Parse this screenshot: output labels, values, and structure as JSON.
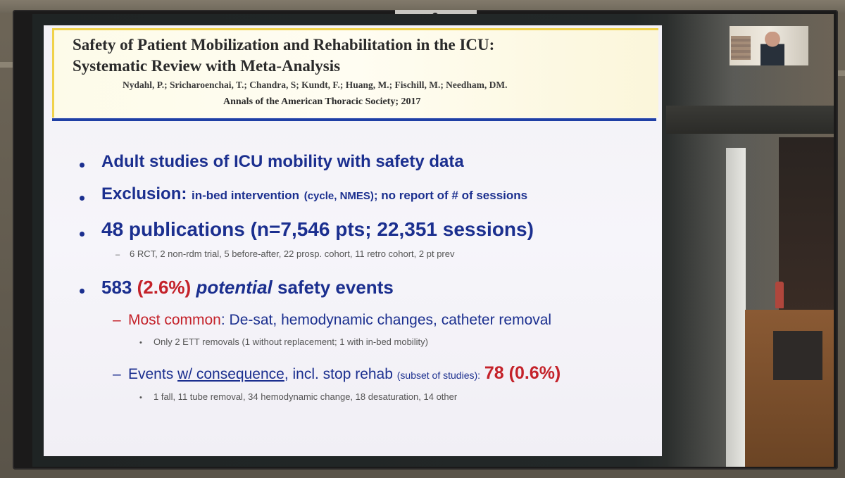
{
  "slide": {
    "title_line1": "Safety of Patient Mobilization and Rehabilitation in the ICU:",
    "title_line2": "Systematic Review with Meta-Analysis",
    "authors": "Nydahl, P.; Sricharoenchai, T.; Chandra, S; Kundt, F.; Huang, M.; Fischill, M.; Needham, DM.",
    "journal": "Annals of the American Thoracic Society; 2017",
    "bullets": {
      "b1": "Adult studies of ICU mobility with safety data",
      "b2_label": "Exclusion:",
      "b2_text": "in-bed intervention",
      "b2_paren": "(cycle, NMES)",
      "b2_tail": "; no report of # of sessions",
      "b3": "48 publications (n=7,546 pts; 22,351 sessions)",
      "b3_sub": "6 RCT, 2 non-rdm trial, 5 before-after, 22 prosp. cohort, 11 retro cohort, 2 pt prev",
      "b4_num": "583",
      "b4_pct": "(2.6%)",
      "b4_italic": "potential",
      "b4_tail": "safety events",
      "b4a_label": "Most common",
      "b4a_text": ": De-sat, hemodynamic changes, catheter removal",
      "b4a_sub": "Only 2 ETT removals (1 without replacement; 1 with in-bed mobility)",
      "b4b_pre": "Events ",
      "b4b_u": "w/ consequence",
      "b4b_mid": ", incl. stop rehab ",
      "b4b_small": "(subset of studies):",
      "b4b_num": "78 (0.6%)",
      "b4b_sub": "1 fall, 11 tube removal, 34 hemodynamic change, 18 desaturation, 14 other"
    }
  },
  "colors": {
    "slide_blue": "#1b2f8f",
    "slide_red": "#c4222a",
    "header_bg": "#fffdf2",
    "header_accent": "#f0d24a",
    "rule_blue": "#1f3fa5"
  },
  "icons": {
    "bullet": "bullet-dot-icon",
    "sub_bullet": "dash-icon"
  }
}
